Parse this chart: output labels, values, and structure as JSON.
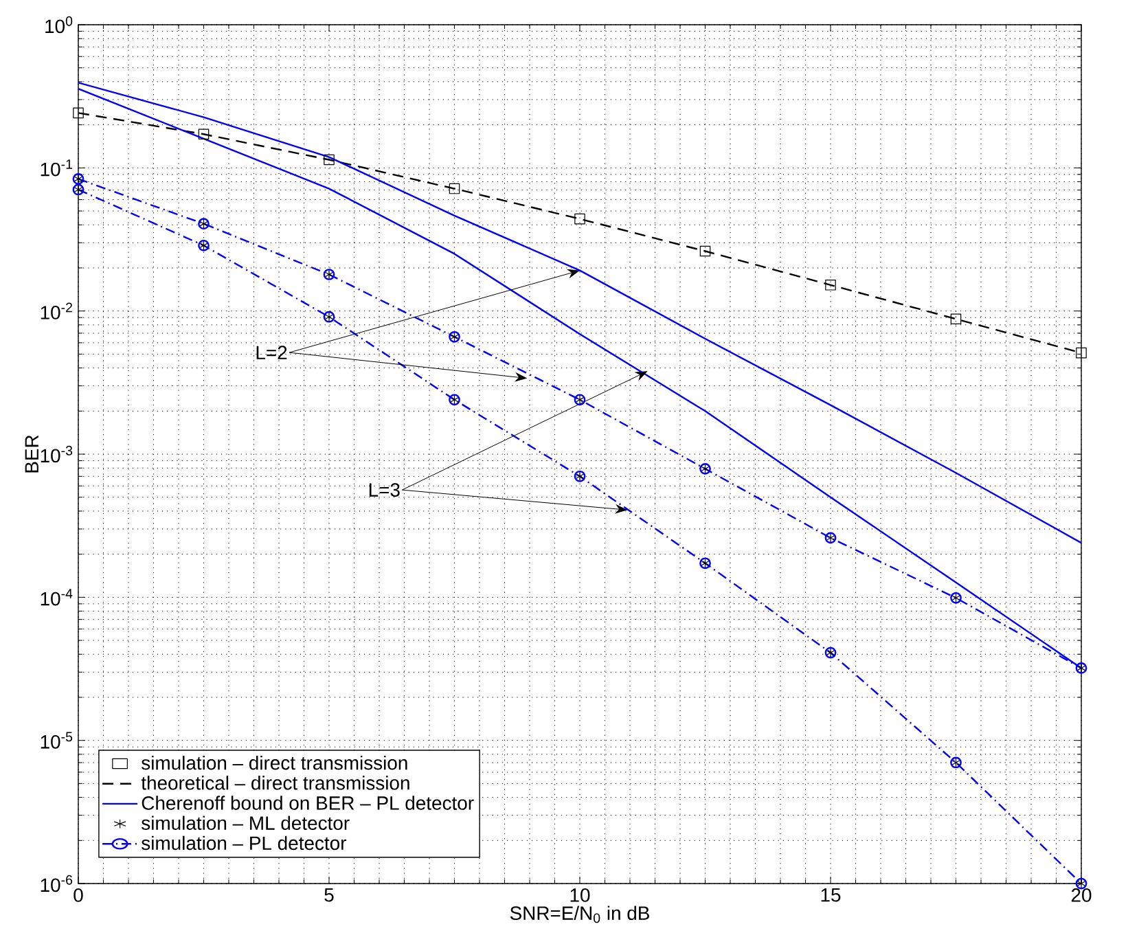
{
  "chart_data": {
    "type": "line",
    "xlabel": "SNR=E/N$_{0}$ in dB",
    "ylabel": "BER",
    "x": [
      0,
      2.5,
      5,
      7.5,
      10,
      12.5,
      15,
      17.5,
      20
    ],
    "xlim": [
      0,
      20
    ],
    "xticks": [
      0,
      5,
      10,
      15,
      20
    ],
    "ylim": [
      1e-06,
      1
    ],
    "log": "y",
    "yticks": [
      {
        "value": 1e-06,
        "label": "10$^{-6}$"
      },
      {
        "value": 1e-05,
        "label": "10$^{-5}$"
      },
      {
        "value": 0.0001,
        "label": "10$^{-4}$"
      },
      {
        "value": 0.001,
        "label": "10$^{-3}$"
      },
      {
        "value": 0.01,
        "label": "10$^{-2}$"
      },
      {
        "value": 0.1,
        "label": "10$^{-1}$"
      },
      {
        "value": 1,
        "label": "10$^{0}$"
      }
    ],
    "grid": true,
    "legend": "bottom left",
    "annotations": [
      {
        "text": "L=2",
        "x": 10,
        "y": 0.0192
      },
      {
        "text": "L=3",
        "x": 11.35,
        "y": 0.0038
      }
    ],
    "series": [
      {
        "name": "simulation – direct transmission",
        "type": "scatter",
        "marker": "square",
        "color": "#000000",
        "values": [
          0.242,
          0.172,
          0.114,
          0.0716,
          0.044,
          0.0262,
          0.0152,
          0.0088,
          0.0051
        ]
      },
      {
        "name": "theoretical – direct transmission",
        "line_style": "dashed",
        "marker": "none",
        "color": "#000000",
        "values": [
          0.242,
          0.172,
          0.114,
          0.0716,
          0.044,
          0.0262,
          0.0152,
          0.0088,
          0.0051
        ]
      },
      {
        "name": "Cherenoff bound on BER – PL detector",
        "line_style": "solid",
        "marker": "none",
        "color": "#0000ff",
        "values": [
          0.394,
          0.226,
          0.119,
          0.0464,
          0.0192,
          0.0064,
          0.0022,
          0.00074,
          0.00024
        ]
      },
      {
        "line_style": "solid",
        "marker": "none",
        "color": "#0000ff",
        "values": [
          0.357,
          0.16,
          0.0716,
          0.0251,
          0.0069,
          0.002,
          0.0005,
          0.000127,
          3.2e-05
        ]
      },
      {
        "name": "simulation – ML detector",
        "type": "scatter",
        "marker": "cross",
        "color": "#000000",
        "values": [
          0.0837,
          0.0407,
          0.018,
          0.0066,
          0.0024,
          0.00079,
          0.00026,
          9.9e-05,
          3.2e-05
        ]
      },
      {
        "type": "scatter",
        "marker": "cross",
        "color": "#000000",
        "values": [
          0.0705,
          0.0287,
          0.0091,
          0.0024,
          0.0007,
          0.000173,
          4.1e-05,
          7e-06,
          1e-06
        ]
      },
      {
        "name": "simulation – PL detector",
        "line_style": "dashdot",
        "marker": "circle",
        "color": "#0000ff",
        "values": [
          0.0837,
          0.0407,
          0.018,
          0.0066,
          0.0024,
          0.00079,
          0.00026,
          9.9e-05,
          3.2e-05
        ]
      },
      {
        "line_style": "dashdot",
        "marker": "circle",
        "color": "#0000ff",
        "values": [
          0.0705,
          0.0287,
          0.0091,
          0.0024,
          0.0007,
          0.000173,
          4.1e-05,
          7e-06,
          1e-06
        ]
      }
    ]
  }
}
